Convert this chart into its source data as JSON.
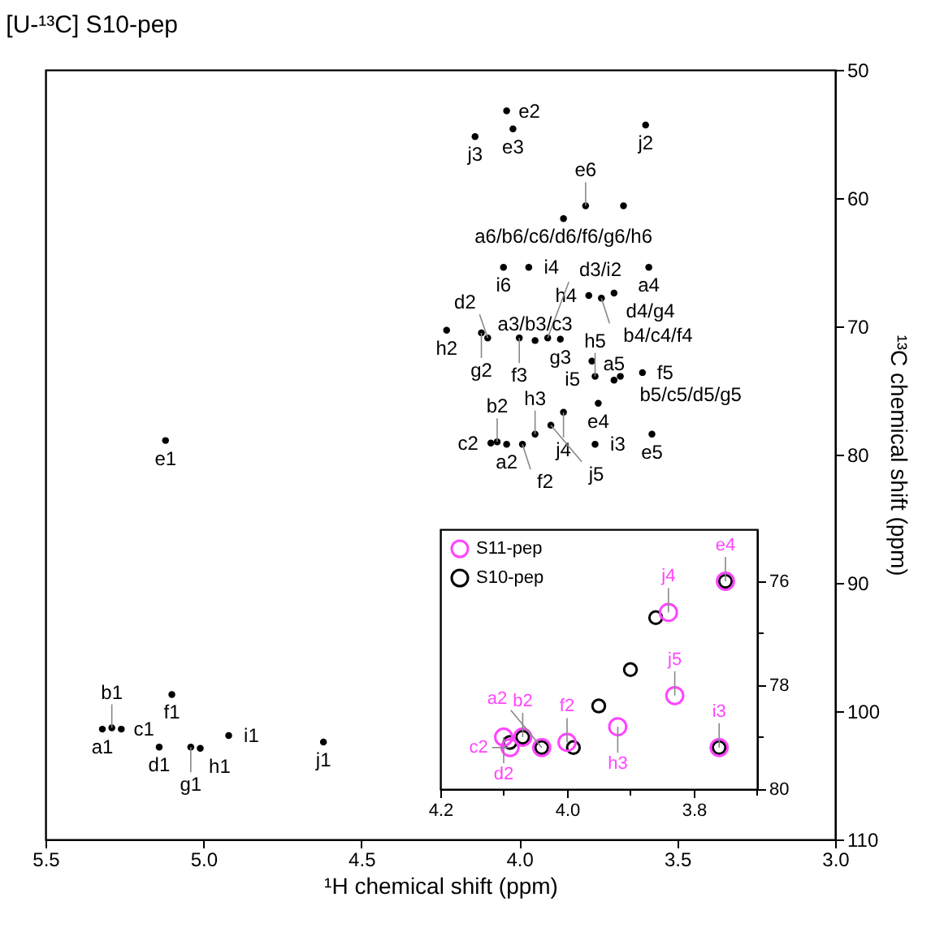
{
  "chart_data": [
    {
      "type": "scatter",
      "title": "[U-¹³C] S10-pep",
      "xlabel": "¹H chemical shift (ppm)",
      "ylabel": "¹³C chemical shift (ppm)",
      "xlim": [
        5.5,
        3.0
      ],
      "xticks": [
        5.5,
        {
          "value": 5,
          "label": "5.0"
        },
        4.5,
        {
          "value": 4,
          "label": "4.0"
        },
        3.5,
        {
          "value": 3,
          "label": "3.0"
        }
      ],
      "ylim": [
        110,
        50
      ],
      "yticks": [
        50,
        60,
        70,
        80,
        90,
        100,
        110
      ],
      "grid": false,
      "marker": "circle",
      "series": [
        {
          "color": "#000000",
          "x": [
            4.04,
            3.6,
            4.02,
            4.14,
            3.86,
            3.79,
            3.67,
            4.05,
            3.97,
            3.78,
            3.59,
            3.7,
            3.74,
            4.23,
            4.12,
            4.1,
            4.0,
            3.91,
            3.87,
            3.95,
            3.77,
            3.76,
            3.68,
            3.61,
            3.7,
            3.86,
            3.75,
            3.58,
            4.04,
            4.07,
            4.09,
            3.99,
            3.95,
            3.9,
            3.76,
            5.12,
            5.1,
            5.32,
            5.29,
            5.26,
            5.14,
            5.04,
            5.01,
            4.92,
            4.62
          ],
          "values": [
            53.2,
            54.3,
            54.6,
            55.2,
            61.6,
            60.6,
            60.6,
            65.4,
            65.4,
            67.6,
            65.4,
            67.4,
            67.8,
            70.3,
            70.5,
            70.9,
            70.9,
            70.9,
            71.0,
            71.1,
            72.7,
            73.9,
            73.9,
            73.6,
            74.2,
            76.7,
            76.0,
            78.4,
            79.2,
            79.0,
            79.1,
            79.2,
            78.4,
            77.7,
            79.2,
            78.9,
            98.7,
            101.4,
            101.3,
            101.4,
            102.8,
            102.8,
            102.9,
            101.9,
            102.4
          ]
        }
      ],
      "annotations": [
        {
          "text": "e2",
          "x": 4.04,
          "y": 53.2
        },
        {
          "text": "j2",
          "x": 3.6,
          "y": 54.3
        },
        {
          "text": "e3",
          "x": 4.02,
          "y": 54.6
        },
        {
          "text": "j3",
          "x": 4.14,
          "y": 55.2
        },
        {
          "text": "a6/b6/c6/d6/f6/g6/h6",
          "x": 3.86,
          "y": 61.6
        },
        {
          "text": "e6",
          "x": 3.79,
          "y": 60.6
        },
        {
          "text": "i6",
          "x": 4.05,
          "y": 65.4
        },
        {
          "text": "i4",
          "x": 3.97,
          "y": 65.4
        },
        {
          "text": "h4",
          "x": 3.78,
          "y": 67.6
        },
        {
          "text": "a4",
          "x": 3.59,
          "y": 65.4
        },
        {
          "text": "d4/g4",
          "x": 3.7,
          "y": 67.4
        },
        {
          "text": "b4/c4/f4",
          "x": 3.74,
          "y": 67.8
        },
        {
          "text": "h2",
          "x": 4.23,
          "y": 70.3
        },
        {
          "text": "g2",
          "x": 4.12,
          "y": 70.5
        },
        {
          "text": "d2",
          "x": 4.1,
          "y": 70.9
        },
        {
          "text": "f3",
          "x": 4.0,
          "y": 70.9
        },
        {
          "text": "d3/i2",
          "x": 3.91,
          "y": 70.9
        },
        {
          "text": "g3",
          "x": 3.87,
          "y": 71.0
        },
        {
          "text": "a3/b3/c3",
          "x": 3.95,
          "y": 71.1
        },
        {
          "text": "i5",
          "x": 3.77,
          "y": 72.7
        },
        {
          "text": "h5",
          "x": 3.76,
          "y": 73.9
        },
        {
          "text": "b5/c5/d5/g5",
          "x": 3.68,
          "y": 73.9
        },
        {
          "text": "f5",
          "x": 3.61,
          "y": 73.6
        },
        {
          "text": "a5",
          "x": 3.7,
          "y": 74.2
        },
        {
          "text": "j4",
          "x": 3.86,
          "y": 76.7
        },
        {
          "text": "e4",
          "x": 3.75,
          "y": 76.0
        },
        {
          "text": "e5",
          "x": 3.58,
          "y": 78.4
        },
        {
          "text": "a2",
          "x": 4.04,
          "y": 79.2
        },
        {
          "text": "b2",
          "x": 4.07,
          "y": 79.0
        },
        {
          "text": "c2",
          "x": 4.09,
          "y": 79.1
        },
        {
          "text": "f2",
          "x": 3.99,
          "y": 79.2
        },
        {
          "text": "h3",
          "x": 3.95,
          "y": 78.4
        },
        {
          "text": "j5",
          "x": 3.9,
          "y": 77.7
        },
        {
          "text": "i3",
          "x": 3.76,
          "y": 79.2
        },
        {
          "text": "e1",
          "x": 5.12,
          "y": 78.9
        },
        {
          "text": "f1",
          "x": 5.1,
          "y": 98.7
        },
        {
          "text": "a1",
          "x": 5.32,
          "y": 101.4
        },
        {
          "text": "b1",
          "x": 5.29,
          "y": 101.3
        },
        {
          "text": "c1",
          "x": 5.26,
          "y": 101.4
        },
        {
          "text": "d1",
          "x": 5.14,
          "y": 102.8
        },
        {
          "text": "g1",
          "x": 5.04,
          "y": 102.8
        },
        {
          "text": "h1",
          "x": 5.01,
          "y": 102.9
        },
        {
          "text": "i1",
          "x": 4.92,
          "y": 101.9
        },
        {
          "text": "j1",
          "x": 4.62,
          "y": 102.4
        }
      ]
    },
    {
      "type": "scatter",
      "xlim": [
        4.2,
        3.7
      ],
      "xticks": [
        4.2,
        {
          "value": 4.1,
          "label": null
        },
        {
          "value": 4,
          "label": "4.0"
        },
        {
          "value": 3.9,
          "label": null
        },
        3.8,
        {
          "value": 3.7,
          "label": null
        }
      ],
      "ylim": [
        80,
        75
      ],
      "yticks": [
        76,
        {
          "value": 77,
          "label": null
        },
        78,
        {
          "value": 79,
          "label": null
        },
        80
      ],
      "grid": false,
      "marker": "circle",
      "legend": "top left",
      "series": [
        {
          "name": "S11-pep",
          "color": "#ff44ff",
          "x": [
            3.75,
            3.84,
            3.83,
            3.92,
            3.76,
            4.0,
            4.04,
            4.07,
            4.1,
            4.09
          ],
          "values": [
            76.0,
            76.6,
            78.2,
            78.8,
            79.2,
            79.1,
            79.2,
            79.0,
            79.0,
            79.2
          ]
        },
        {
          "name": "S10-pep",
          "color": "#000000",
          "x": [
            3.75,
            3.86,
            3.9,
            3.95,
            4.07,
            4.09,
            4.04,
            3.99,
            3.76
          ],
          "values": [
            76.0,
            76.7,
            77.7,
            78.4,
            79.0,
            79.1,
            79.2,
            79.2,
            79.2
          ]
        }
      ],
      "annotations": [
        {
          "text": "e4",
          "x": 3.75,
          "y": 76.0
        },
        {
          "text": "j4",
          "x": 3.84,
          "y": 76.6
        },
        {
          "text": "j5",
          "x": 3.83,
          "y": 78.2
        },
        {
          "text": "h3",
          "x": 3.92,
          "y": 78.8
        },
        {
          "text": "i3",
          "x": 3.76,
          "y": 79.2
        },
        {
          "text": "b2",
          "x": 4.07,
          "y": 79.0
        },
        {
          "text": "f2",
          "x": 4.0,
          "y": 79.1
        },
        {
          "text": "d2",
          "x": 4.1,
          "y": 79.0
        },
        {
          "text": "c2",
          "x": 4.09,
          "y": 79.2
        },
        {
          "text": "a2",
          "x": 4.04,
          "y": 79.2
        }
      ]
    }
  ]
}
